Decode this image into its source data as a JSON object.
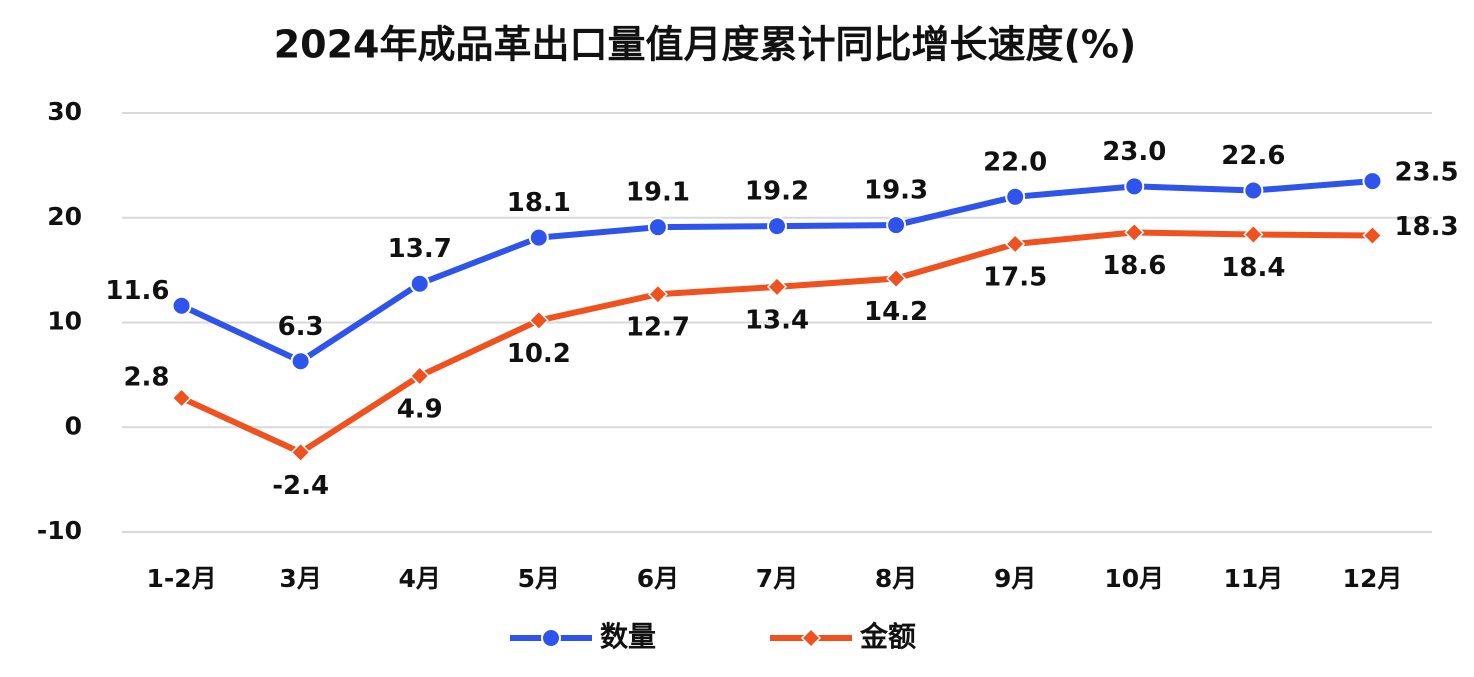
{
  "chart_data": {
    "type": "line",
    "title": "2024年成品革出口量值月度累计同比增长速度(%)",
    "categories": [
      "1-2月",
      "3月",
      "4月",
      "5月",
      "6月",
      "7月",
      "8月",
      "9月",
      "10月",
      "11月",
      "12月"
    ],
    "series": [
      {
        "name": "数量",
        "color": "#2f54eb",
        "marker": "circle",
        "values": [
          11.6,
          6.3,
          13.7,
          18.1,
          19.1,
          19.2,
          19.3,
          22.0,
          23.0,
          22.6,
          23.5
        ],
        "value_labels": [
          "11.6",
          "6.3",
          "13.7",
          "18.1",
          "19.1",
          "19.2",
          "19.3",
          "22.0",
          "23.0",
          "22.6",
          "23.5"
        ]
      },
      {
        "name": "金额",
        "color": "#f0521f",
        "marker": "diamond",
        "values": [
          2.8,
          -2.4,
          4.9,
          10.2,
          12.7,
          13.4,
          14.2,
          17.5,
          18.6,
          18.4,
          18.3
        ],
        "value_labels": [
          "2.8",
          "-2.4",
          "4.9",
          "10.2",
          "12.7",
          "13.4",
          "14.2",
          "17.5",
          "18.6",
          "18.4",
          "18.3"
        ]
      }
    ],
    "ylim": [
      -10,
      30
    ],
    "yticks": [
      -10,
      0,
      10,
      20,
      30
    ],
    "grid": true,
    "legend": "bottom"
  }
}
